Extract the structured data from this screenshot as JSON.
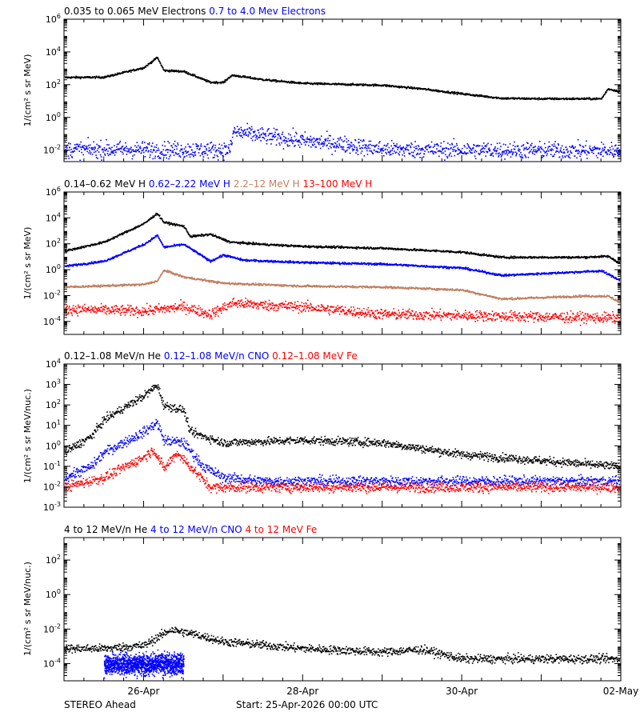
{
  "footer": {
    "spacecraft": "STEREO Ahead",
    "start_label": "Start: 25-Apr-2026 00:00 UTC"
  },
  "x_axis": {
    "start": "2026-04-25T00:00Z",
    "end": "2026-05-02T00:00Z",
    "ticks": [
      {
        "date": "2026-04-26",
        "label": "26-Apr"
      },
      {
        "date": "2026-04-28",
        "label": "28-Apr"
      },
      {
        "date": "2026-04-30",
        "label": "30-Apr"
      },
      {
        "date": "2026-05-02",
        "label": "02-May"
      }
    ],
    "minor_tick_hours": 6
  },
  "chart_data": [
    {
      "type": "scatter",
      "panel": "electrons",
      "ylabel": "1/(cm² s sr MeV)",
      "yscale": "log",
      "ylim": [
        0.002,
        1000000
      ],
      "yticks": [
        {
          "exp": -2
        },
        {
          "exp": 0
        },
        {
          "exp": 2
        },
        {
          "exp": 4
        },
        {
          "exp": 6
        }
      ],
      "series": [
        {
          "name": "0.035 to 0.065 MeV Electrons",
          "color": "#000000",
          "noise": 0.03,
          "x": [
            "2026-04-25T00:00Z",
            "2026-04-25T12:00Z",
            "2026-04-26T00:00Z",
            "2026-04-26T04:00Z",
            "2026-04-26T06:00Z",
            "2026-04-26T12:00Z",
            "2026-04-26T20:00Z",
            "2026-04-27T00:00Z",
            "2026-04-27T02:00Z",
            "2026-04-27T03:00Z",
            "2026-04-27T12:00Z",
            "2026-04-28T00:00Z",
            "2026-04-29T00:00Z",
            "2026-04-29T12:00Z",
            "2026-04-30T00:00Z",
            "2026-04-30T12:00Z",
            "2026-05-01T00:00Z",
            "2026-05-01T18:00Z",
            "2026-05-01T20:00Z",
            "2026-05-02T00:00Z"
          ],
          "y": [
            300,
            310,
            1200,
            5000,
            800,
            700,
            150,
            150,
            350,
            400,
            220,
            130,
            100,
            60,
            30,
            16,
            15,
            15,
            60,
            40
          ]
        },
        {
          "name": "0.7 to 4.0 Mev Electrons",
          "color": "#0000ff",
          "noise": 0.25,
          "x": [
            "2026-04-25T00:00Z",
            "2026-04-27T02:00Z",
            "2026-04-27T03:00Z",
            "2026-04-27T12:00Z",
            "2026-04-28T00:00Z",
            "2026-04-28T12:00Z",
            "2026-04-29T00:00Z",
            "2026-05-02T00:00Z"
          ],
          "y": [
            0.012,
            0.011,
            0.15,
            0.08,
            0.04,
            0.025,
            0.012,
            0.01
          ]
        }
      ]
    },
    {
      "type": "scatter",
      "panel": "protons",
      "ylabel": "1/(cm² s sr MeV)",
      "yscale": "log",
      "ylim": [
        1e-05,
        1000000
      ],
      "yticks": [
        {
          "exp": -4
        },
        {
          "exp": -2
        },
        {
          "exp": 0
        },
        {
          "exp": 2
        },
        {
          "exp": 4
        },
        {
          "exp": 6
        }
      ],
      "series": [
        {
          "name": "0.14–0.62 MeV H",
          "color": "#000000",
          "noise": 0.04,
          "x": [
            "2026-04-25T00:00Z",
            "2026-04-25T12:00Z",
            "2026-04-26T00:00Z",
            "2026-04-26T04:00Z",
            "2026-04-26T06:00Z",
            "2026-04-26T12:00Z",
            "2026-04-26T14:00Z",
            "2026-04-26T20:00Z",
            "2026-04-27T02:00Z",
            "2026-04-27T12:00Z",
            "2026-04-28T00:00Z",
            "2026-04-29T00:00Z",
            "2026-04-30T00:00Z",
            "2026-04-30T12:00Z",
            "2026-05-01T12:00Z",
            "2026-05-01T20:00Z",
            "2026-05-02T00:00Z"
          ],
          "y": [
            30,
            150,
            4000,
            25000,
            5000,
            2500,
            400,
            600,
            150,
            100,
            70,
            50,
            25,
            10,
            10,
            12,
            3
          ]
        },
        {
          "name": "0.62–2.22 MeV H",
          "color": "#0000ff",
          "noise": 0.04,
          "x": [
            "2026-04-25T00:00Z",
            "2026-04-25T12:00Z",
            "2026-04-26T00:00Z",
            "2026-04-26T04:00Z",
            "2026-04-26T06:00Z",
            "2026-04-26T12:00Z",
            "2026-04-26T20:00Z",
            "2026-04-27T00:00Z",
            "2026-04-27T06:00Z",
            "2026-04-28T00:00Z",
            "2026-04-29T00:00Z",
            "2026-04-30T00:00Z",
            "2026-04-30T12:00Z",
            "2026-05-01T18:00Z",
            "2026-05-02T00:00Z"
          ],
          "y": [
            2,
            5,
            100,
            500,
            60,
            100,
            5,
            15,
            6,
            4,
            3,
            1.5,
            0.4,
            0.9,
            0.15
          ]
        },
        {
          "name": "2.2–12 MeV H",
          "color": "#c08060",
          "noise": 0.04,
          "x": [
            "2026-04-25T00:00Z",
            "2026-04-26T00:00Z",
            "2026-04-26T04:00Z",
            "2026-04-26T06:00Z",
            "2026-04-26T12:00Z",
            "2026-04-27T00:00Z",
            "2026-04-28T00:00Z",
            "2026-04-29T00:00Z",
            "2026-04-30T00:00Z",
            "2026-04-30T12:00Z",
            "2026-05-01T12:00Z",
            "2026-05-01T20:00Z",
            "2026-05-02T00:00Z"
          ],
          "y": [
            0.05,
            0.08,
            0.15,
            1.0,
            0.3,
            0.1,
            0.06,
            0.05,
            0.03,
            0.006,
            0.01,
            0.01,
            0.003
          ]
        },
        {
          "name": "13–100 MeV H",
          "color": "#ff0000",
          "noise": 0.2,
          "x": [
            "2026-04-25T00:00Z",
            "2026-04-26T00:00Z",
            "2026-04-26T12:00Z",
            "2026-04-26T20:00Z",
            "2026-04-27T03:00Z",
            "2026-04-27T12:00Z",
            "2026-04-28T00:00Z",
            "2026-04-29T00:00Z",
            "2026-05-02T00:00Z"
          ],
          "y": [
            0.001,
            0.0007,
            0.0015,
            0.0004,
            0.003,
            0.002,
            0.0015,
            0.0004,
            0.0002
          ]
        }
      ]
    },
    {
      "type": "scatter",
      "panel": "ions-low",
      "ylabel": "1/(cm² s sr MeV/nuc.)",
      "yscale": "log",
      "ylim": [
        0.001,
        10000
      ],
      "yticks": [
        {
          "exp": -3
        },
        {
          "exp": -2
        },
        {
          "exp": -1
        },
        {
          "exp": 0
        },
        {
          "exp": 1
        },
        {
          "exp": 2
        },
        {
          "exp": 3
        },
        {
          "exp": 4
        }
      ],
      "series": [
        {
          "name": "0.12–1.08 MeV/n He",
          "color": "#000000",
          "noise": 0.1,
          "x": [
            "2026-04-25T00:00Z",
            "2026-04-25T08:00Z",
            "2026-04-25T12:00Z",
            "2026-04-26T00:00Z",
            "2026-04-26T04:00Z",
            "2026-04-26T06:00Z",
            "2026-04-26T12:00Z",
            "2026-04-26T14:00Z",
            "2026-04-27T00:00Z",
            "2026-04-28T00:00Z",
            "2026-04-29T00:00Z",
            "2026-04-30T00:00Z",
            "2026-05-02T00:00Z"
          ],
          "y": [
            0.5,
            3,
            20,
            300,
            1000,
            100,
            60,
            5,
            1.5,
            2,
            1.5,
            0.4,
            0.1
          ]
        },
        {
          "name": "0.12–1.08 MeV/n CNO",
          "color": "#0000ff",
          "noise": 0.12,
          "x": [
            "2026-04-25T00:00Z",
            "2026-04-25T08:00Z",
            "2026-04-25T12:00Z",
            "2026-04-26T00:00Z",
            "2026-04-26T04:00Z",
            "2026-04-26T06:00Z",
            "2026-04-26T12:00Z",
            "2026-04-26T18:00Z",
            "2026-04-27T00:00Z",
            "2026-04-27T12:00Z",
            "2026-05-02T00:00Z"
          ],
          "y": [
            0.03,
            0.1,
            0.5,
            5,
            15,
            2,
            1.5,
            0.1,
            0.03,
            0.02,
            0.02
          ]
        },
        {
          "name": "0.12–1.08 MeV Fe",
          "color": "#ff0000",
          "noise": 0.12,
          "x": [
            "2026-04-25T00:00Z",
            "2026-04-25T12:00Z",
            "2026-04-26T00:00Z",
            "2026-04-26T03:00Z",
            "2026-04-26T06:00Z",
            "2026-04-26T10:00Z",
            "2026-04-26T14:00Z",
            "2026-04-26T20:00Z",
            "2026-05-02T00:00Z"
          ],
          "y": [
            0.01,
            0.03,
            0.3,
            0.7,
            0.08,
            0.5,
            0.1,
            0.01,
            0.01
          ]
        }
      ]
    },
    {
      "type": "scatter",
      "panel": "ions-high",
      "ylabel": "1/(cm² s sr MeV/nuc.)",
      "yscale": "log",
      "ylim": [
        1e-05,
        2000
      ],
      "yticks": [
        {
          "exp": -4
        },
        {
          "exp": -2
        },
        {
          "exp": 0
        },
        {
          "exp": 2
        }
      ],
      "series": [
        {
          "name": "4 to 12 MeV/n He",
          "color": "#000000",
          "noise": 0.12,
          "x": [
            "2026-04-25T00:00Z",
            "2026-04-25T12:00Z",
            "2026-04-26T00:00Z",
            "2026-04-26T08:00Z",
            "2026-04-26T16:00Z",
            "2026-04-27T00:00Z",
            "2026-04-28T00:00Z",
            "2026-04-29T00:00Z",
            "2026-04-29T12:00Z",
            "2026-04-30T00:00Z",
            "2026-05-02T00:00Z"
          ],
          "y": [
            0.0008,
            0.0008,
            0.0012,
            0.01,
            0.005,
            0.002,
            0.0008,
            0.0005,
            0.0007,
            0.0002,
            0.0002
          ]
        },
        {
          "name": "4 to 12 MeV/n CNO",
          "color": "#0000ff",
          "noise": 0.3,
          "x": [
            "2026-04-25T12:00Z",
            "2026-04-26T12:00Z"
          ],
          "y": [
            0.0001,
            0.0001
          ]
        },
        {
          "name": "4 to 12 MeV Fe",
          "color": "#ff0000",
          "x": [],
          "y": []
        }
      ]
    }
  ]
}
